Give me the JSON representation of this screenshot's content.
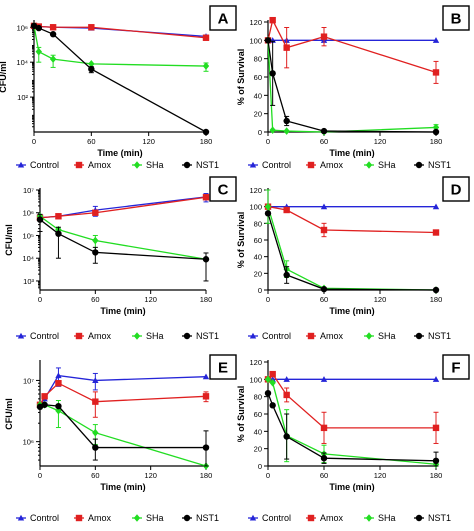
{
  "colors": {
    "Control": "#2525d8",
    "Amox": "#e02020",
    "SHa": "#22dd22",
    "NST1": "#000000"
  },
  "chart_data": [
    {
      "panel": "A",
      "type": "line",
      "scale": "log",
      "ylabel": "CFU/ml",
      "xlabel": "Time (min)",
      "xlim": [
        0,
        180
      ],
      "xticks": [
        "0",
        "60",
        "120",
        "180"
      ],
      "ylim": [
        1,
        2000000
      ],
      "yticks": [
        {
          "v": 1000000,
          "label": "10⁶"
        },
        {
          "v": 10000,
          "label": "10⁴"
        },
        {
          "v": 100,
          "label": "10²"
        }
      ],
      "series": [
        {
          "name": "Control",
          "marker": "triangle",
          "x": [
            0,
            5,
            20,
            60,
            180
          ],
          "y": [
            1300000,
            1100000,
            1000000,
            900000,
            300000
          ],
          "err": [
            0,
            0,
            0,
            200000,
            60000
          ]
        },
        {
          "name": "Amox",
          "marker": "square",
          "x": [
            0,
            5,
            20,
            60,
            180
          ],
          "y": [
            1200000,
            1100000,
            1000000,
            1000000,
            250000
          ],
          "err": [
            0,
            0,
            0,
            0,
            0
          ]
        },
        {
          "name": "SHa",
          "marker": "diamond",
          "x": [
            0,
            5,
            20,
            60,
            180
          ],
          "y": [
            1200000,
            40000,
            15000,
            8000,
            6000
          ],
          "err": [
            0,
            30000,
            10000,
            0,
            3000
          ]
        },
        {
          "name": "NST1",
          "marker": "circle",
          "x": [
            0,
            5,
            20,
            60,
            180
          ],
          "y": [
            1200000,
            900000,
            400000,
            4000,
            1
          ],
          "err": [
            0,
            0,
            0,
            1500,
            0
          ]
        }
      ]
    },
    {
      "panel": "B",
      "type": "line",
      "scale": "linear",
      "ylabel": "% of Survival",
      "xlabel": "Time (min)",
      "xlim": [
        0,
        180
      ],
      "xticks": [
        "0",
        "60",
        "120",
        "180"
      ],
      "ylim": [
        0,
        120
      ],
      "yticks": [
        0,
        20,
        40,
        60,
        80,
        100,
        120
      ],
      "series": [
        {
          "name": "Control",
          "marker": "triangle",
          "x": [
            0,
            5,
            20,
            60,
            180
          ],
          "y": [
            100,
            100,
            100,
            100,
            100
          ],
          "err": [
            0,
            0,
            0,
            0,
            0
          ]
        },
        {
          "name": "Amox",
          "marker": "square",
          "x": [
            0,
            5,
            20,
            60,
            180
          ],
          "y": [
            100,
            122,
            92,
            104,
            65
          ],
          "err": [
            0,
            0,
            22,
            10,
            12
          ]
        },
        {
          "name": "SHa",
          "marker": "diamond",
          "x": [
            0,
            5,
            20,
            60,
            180
          ],
          "y": [
            100,
            2,
            1,
            0,
            5
          ],
          "err": [
            0,
            0,
            0,
            0,
            3
          ]
        },
        {
          "name": "NST1",
          "marker": "circle",
          "x": [
            0,
            5,
            20,
            60,
            180
          ],
          "y": [
            100,
            64,
            12,
            1,
            0
          ],
          "err": [
            0,
            35,
            5,
            0,
            0
          ]
        }
      ]
    },
    {
      "panel": "C",
      "type": "line",
      "scale": "log",
      "ylabel": "CFU/ml",
      "xlabel": "Time (min)",
      "xlim": [
        0,
        180
      ],
      "xticks": [
        "0",
        "60",
        "120",
        "180"
      ],
      "ylim": [
        400,
        10000000
      ],
      "yticks": [
        {
          "v": 10000000,
          "label": "10⁷"
        },
        {
          "v": 1000000,
          "label": "10⁶"
        },
        {
          "v": 100000,
          "label": "10⁵"
        },
        {
          "v": 10000,
          "label": "10⁴"
        },
        {
          "v": 1000,
          "label": "10³"
        }
      ],
      "series": [
        {
          "name": "Control",
          "marker": "triangle",
          "x": [
            0,
            20,
            60,
            180
          ],
          "y": [
            600000,
            700000,
            1300000,
            5000000
          ],
          "err": [
            0,
            0,
            600000,
            2000000
          ]
        },
        {
          "name": "Amox",
          "marker": "square",
          "x": [
            0,
            20,
            60,
            180
          ],
          "y": [
            600000,
            700000,
            1000000,
            4800000
          ],
          "err": [
            0,
            0,
            0,
            0
          ]
        },
        {
          "name": "SHa",
          "marker": "diamond",
          "x": [
            0,
            20,
            60,
            180
          ],
          "y": [
            700000,
            180000,
            60000,
            9000
          ],
          "err": [
            0,
            0,
            40000,
            0
          ]
        },
        {
          "name": "NST1",
          "marker": "circle",
          "x": [
            0,
            20,
            60,
            180
          ],
          "y": [
            500000,
            120000,
            18000,
            9000
          ],
          "err": [
            350000,
            110000,
            12000,
            8000
          ]
        }
      ]
    },
    {
      "panel": "D",
      "type": "line",
      "scale": "linear",
      "ylabel": "% of Survival",
      "xlabel": "Time (min)",
      "xlim": [
        0,
        180
      ],
      "xticks": [
        "0",
        "60",
        "120",
        "180"
      ],
      "ylim": [
        0,
        120
      ],
      "yticks": [
        0,
        20,
        40,
        60,
        80,
        100,
        120
      ],
      "series": [
        {
          "name": "Control",
          "marker": "triangle",
          "x": [
            0,
            20,
            60,
            180
          ],
          "y": [
            100,
            100,
            100,
            100
          ],
          "err": [
            0,
            0,
            0,
            0
          ]
        },
        {
          "name": "Amox",
          "marker": "square",
          "x": [
            0,
            20,
            60,
            180
          ],
          "y": [
            100,
            96,
            72,
            69
          ],
          "err": [
            0,
            0,
            8,
            0
          ]
        },
        {
          "name": "SHa",
          "marker": "diamond",
          "x": [
            0,
            20,
            60,
            180
          ],
          "y": [
            100,
            25,
            2,
            0
          ],
          "err": [
            20,
            10,
            0,
            0
          ]
        },
        {
          "name": "NST1",
          "marker": "circle",
          "x": [
            0,
            20,
            60,
            180
          ],
          "y": [
            92,
            18,
            1,
            0
          ],
          "err": [
            0,
            10,
            0,
            0
          ]
        }
      ]
    },
    {
      "panel": "E",
      "type": "line",
      "scale": "log",
      "ylabel": "CFU/ml",
      "xlabel": "Time (min)",
      "xlim": [
        0,
        180
      ],
      "xticks": [
        "0",
        "60",
        "120",
        "180"
      ],
      "ylim": [
        400000,
        20000000
      ],
      "yticks": [
        {
          "v": 10000000,
          "label": "10⁷"
        },
        {
          "v": 1000000,
          "label": "10⁶"
        }
      ],
      "series": [
        {
          "name": "Control",
          "marker": "triangle",
          "x": [
            0,
            5,
            20,
            60,
            180
          ],
          "y": [
            4000000,
            5000000,
            12000000,
            10000000,
            11500000
          ],
          "err": [
            0,
            0,
            4000000,
            3000000,
            0
          ]
        },
        {
          "name": "Amox",
          "marker": "square",
          "x": [
            0,
            5,
            20,
            60,
            180
          ],
          "y": [
            4000000,
            5500000,
            9000000,
            4500000,
            5500000
          ],
          "err": [
            0,
            0,
            0,
            2000000,
            1000000
          ]
        },
        {
          "name": "SHa",
          "marker": "diamond",
          "x": [
            0,
            5,
            20,
            60,
            180
          ],
          "y": [
            4000000,
            4000000,
            3200000,
            1400000,
            160000
          ],
          "err": [
            0,
            0,
            1500000,
            500000,
            80000
          ]
        },
        {
          "name": "NST1",
          "marker": "circle",
          "x": [
            0,
            5,
            20,
            60,
            180
          ],
          "y": [
            3700000,
            4000000,
            3800000,
            800000,
            800000
          ],
          "err": [
            0,
            0,
            0,
            300000,
            700000
          ]
        }
      ]
    },
    {
      "panel": "F",
      "type": "line",
      "scale": "linear",
      "ylabel": "% of Survival",
      "xlabel": "Time (min)",
      "xlim": [
        0,
        180
      ],
      "xticks": [
        "0",
        "60",
        "120",
        "180"
      ],
      "ylim": [
        0,
        120
      ],
      "yticks": [
        0,
        20,
        40,
        60,
        80,
        100,
        120
      ],
      "series": [
        {
          "name": "Control",
          "marker": "triangle",
          "x": [
            0,
            5,
            20,
            60,
            180
          ],
          "y": [
            100,
            100,
            100,
            100,
            100
          ],
          "err": [
            0,
            0,
            0,
            0,
            0
          ]
        },
        {
          "name": "Amox",
          "marker": "square",
          "x": [
            0,
            5,
            20,
            60,
            180
          ],
          "y": [
            100,
            106,
            82,
            44,
            44
          ],
          "err": [
            0,
            0,
            8,
            18,
            18
          ]
        },
        {
          "name": "SHa",
          "marker": "diamond",
          "x": [
            0,
            5,
            20,
            60,
            180
          ],
          "y": [
            100,
            96,
            35,
            14,
            2
          ],
          "err": [
            0,
            0,
            30,
            10,
            0
          ]
        },
        {
          "name": "NST1",
          "marker": "circle",
          "x": [
            0,
            5,
            20,
            60,
            180
          ],
          "y": [
            84,
            70,
            34,
            9,
            6
          ],
          "err": [
            0,
            0,
            26,
            6,
            10
          ]
        }
      ]
    }
  ],
  "legend": {
    "items": [
      {
        "name": "Control",
        "marker": "triangle"
      },
      {
        "name": "Amox",
        "marker": "square"
      },
      {
        "name": "SHa",
        "marker": "diamond"
      },
      {
        "name": "NST1",
        "marker": "circle"
      }
    ]
  }
}
